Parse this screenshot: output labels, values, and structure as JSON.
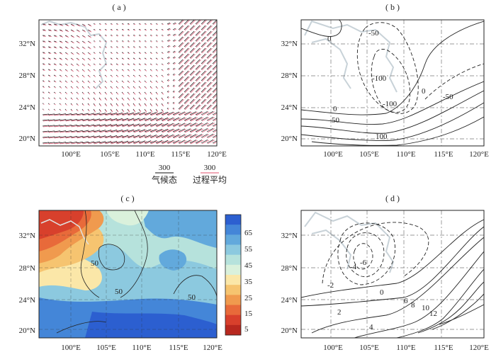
{
  "panels": {
    "a": {
      "label": "( a )",
      "lat_ticks": [
        "32°N",
        "28°N",
        "24°N",
        "20°N"
      ],
      "lon_ticks": [
        "100°E",
        "105°E",
        "110°E",
        "115°E",
        "120°E"
      ],
      "legend": {
        "climate": {
          "value": "300",
          "name": "气候态",
          "color": "#111111"
        },
        "process": {
          "value": "300",
          "name": "过程平均",
          "color": "#e0506e"
        }
      }
    },
    "b": {
      "label": "( b )",
      "lat_ticks": [
        "32°N",
        "28°N",
        "24°N",
        "20°N"
      ],
      "lon_ticks": [
        "100°E",
        "105°E",
        "110°E",
        "115°E",
        "120°E"
      ],
      "contour_labels": [
        "0",
        "-50",
        "-100",
        "0",
        "-50",
        "0",
        "-100",
        "50",
        "100"
      ]
    },
    "c": {
      "label": "( c )",
      "lat_ticks": [
        "32°N",
        "28°N",
        "24°N",
        "20°N"
      ],
      "lon_ticks": [
        "100°E",
        "105°E",
        "110°E",
        "115°E",
        "120°E"
      ],
      "contour_labels": [
        "50",
        "50",
        "50"
      ],
      "colorbar": {
        "ticks": [
          "65",
          "55",
          "45",
          "35",
          "25",
          "15",
          "5"
        ],
        "colors": [
          "#2c5fd0",
          "#4486d8",
          "#62a9dc",
          "#8cc9df",
          "#b6e2dc",
          "#daf1dc",
          "#fbe7a8",
          "#f6c470",
          "#f09a4e",
          "#e86a3a",
          "#d8402c",
          "#b8281f"
        ]
      }
    },
    "d": {
      "label": "( d )",
      "lat_ticks": [
        "32°N",
        "28°N",
        "24°N",
        "20°N"
      ],
      "lon_ticks": [
        "100°E",
        "105°E",
        "110°E",
        "115°E",
        "120°E"
      ],
      "contour_labels": [
        "-6",
        "-4",
        "-2",
        "0",
        "2",
        "4",
        "6",
        "8",
        "10",
        "12"
      ]
    }
  }
}
